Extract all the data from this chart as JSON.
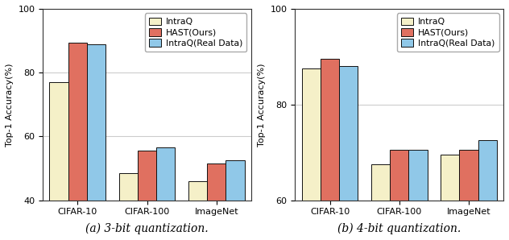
{
  "chart_a": {
    "caption": "(a) 3-bit quantization.",
    "ylim": [
      40,
      100
    ],
    "yticks": [
      40,
      60,
      80,
      100
    ],
    "categories": [
      "CIFAR-10",
      "CIFAR-100",
      "ImageNet"
    ],
    "series": {
      "IntraQ": [
        77.0,
        48.5,
        46.0
      ],
      "HAST(Ours)": [
        89.5,
        55.5,
        51.5
      ],
      "IntraQ(Real Data)": [
        89.0,
        56.5,
        52.5
      ]
    }
  },
  "chart_b": {
    "caption": "(b) 4-bit quantization.",
    "ylim": [
      60,
      100
    ],
    "yticks": [
      60,
      80,
      100
    ],
    "categories": [
      "CIFAR-10",
      "CIFAR-100",
      "ImageNet"
    ],
    "series": {
      "IntraQ": [
        87.5,
        67.5,
        69.5
      ],
      "HAST(Ours)": [
        89.5,
        70.5,
        70.5
      ],
      "IntraQ(Real Data)": [
        88.0,
        70.5,
        72.5
      ]
    }
  },
  "colors": {
    "IntraQ": "#f5f0c8",
    "HAST(Ours)": "#e07060",
    "IntraQ(Real Data)": "#90c8e8"
  },
  "bar_edgecolor": "#111111",
  "bar_width": 0.27,
  "ylabel": "Top-1 Accuracy(%)",
  "grid_color": "#cccccc",
  "legend_fontsize": 7.8,
  "axis_fontsize": 8.0,
  "tick_fontsize": 8.0,
  "caption_fontsize": 10.0
}
